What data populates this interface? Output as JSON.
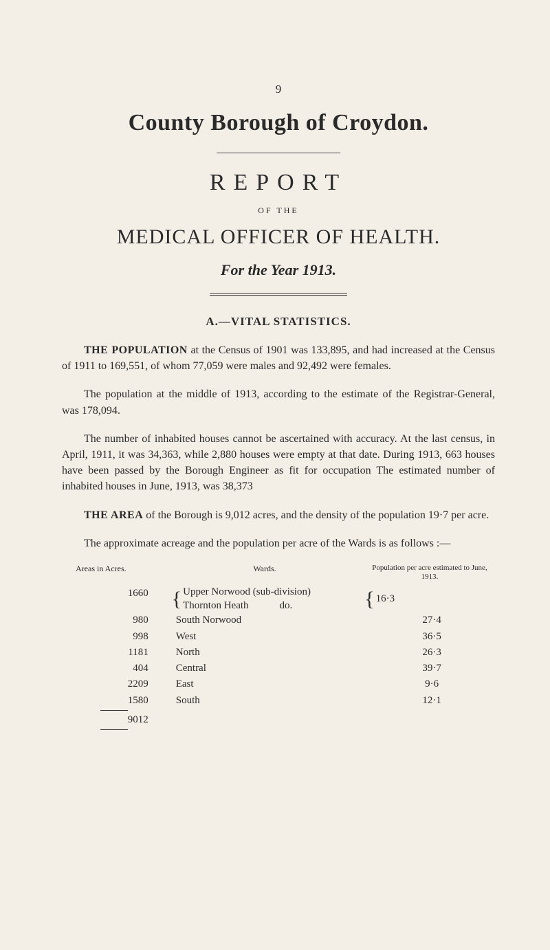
{
  "page_number": "9",
  "main_title": "County Borough of Croydon.",
  "report_word": "REPORT",
  "of_the": "OF THE",
  "officer_title": "MEDICAL OFFICER OF HEALTH.",
  "year_line": "For the Year 1913.",
  "section_head": "A.—VITAL STATISTICS.",
  "para1": "at the Census of 1901 was 133,895, and had increased at the Census of 1911 to 169,551, of whom 77,059 were males and 92,492 were females.",
  "para1_lead": "THE POPULATION",
  "para2": "The population at the middle of 1913, according to the estimate of the Registrar-General, was 178,094.",
  "para3": "The number of inhabited houses cannot be ascertained with accuracy. At the last census, in April, 1911, it was 34,363, while 2,880 houses were empty at that date. During 1913, 663 houses have been passed by the Borough Engineer as fit for occupation The estimated number of inhabited houses in June, 1913, was 38,373",
  "para4_lead": "THE AREA",
  "para4": "of the Borough is 9,012 acres, and the density of the population 19·7 per acre.",
  "para5": "The approximate acreage and the population per acre of the Wards is as follows :—",
  "table": {
    "headers": {
      "areas": "Areas in Acres.",
      "wards": "Wards.",
      "pop": "Population per acre estimated to June, 1913."
    },
    "rows": [
      {
        "areas": "1660",
        "wards_upper": "Upper Norwood (sub-division)",
        "wards_lower": "Thornton Heath   do.",
        "pop": "16·3",
        "brace": true
      },
      {
        "areas": "980",
        "wards": "South Norwood",
        "pop": "27·4"
      },
      {
        "areas": "998",
        "wards": "West",
        "pop": "36·5"
      },
      {
        "areas": "1181",
        "wards": "North",
        "pop": "26·3"
      },
      {
        "areas": "404",
        "wards": "Central",
        "pop": "39·7"
      },
      {
        "areas": "2209",
        "wards": "East",
        "pop": "9·6"
      },
      {
        "areas": "1580",
        "wards": "South",
        "pop": "12·1"
      }
    ],
    "total": "9012"
  }
}
